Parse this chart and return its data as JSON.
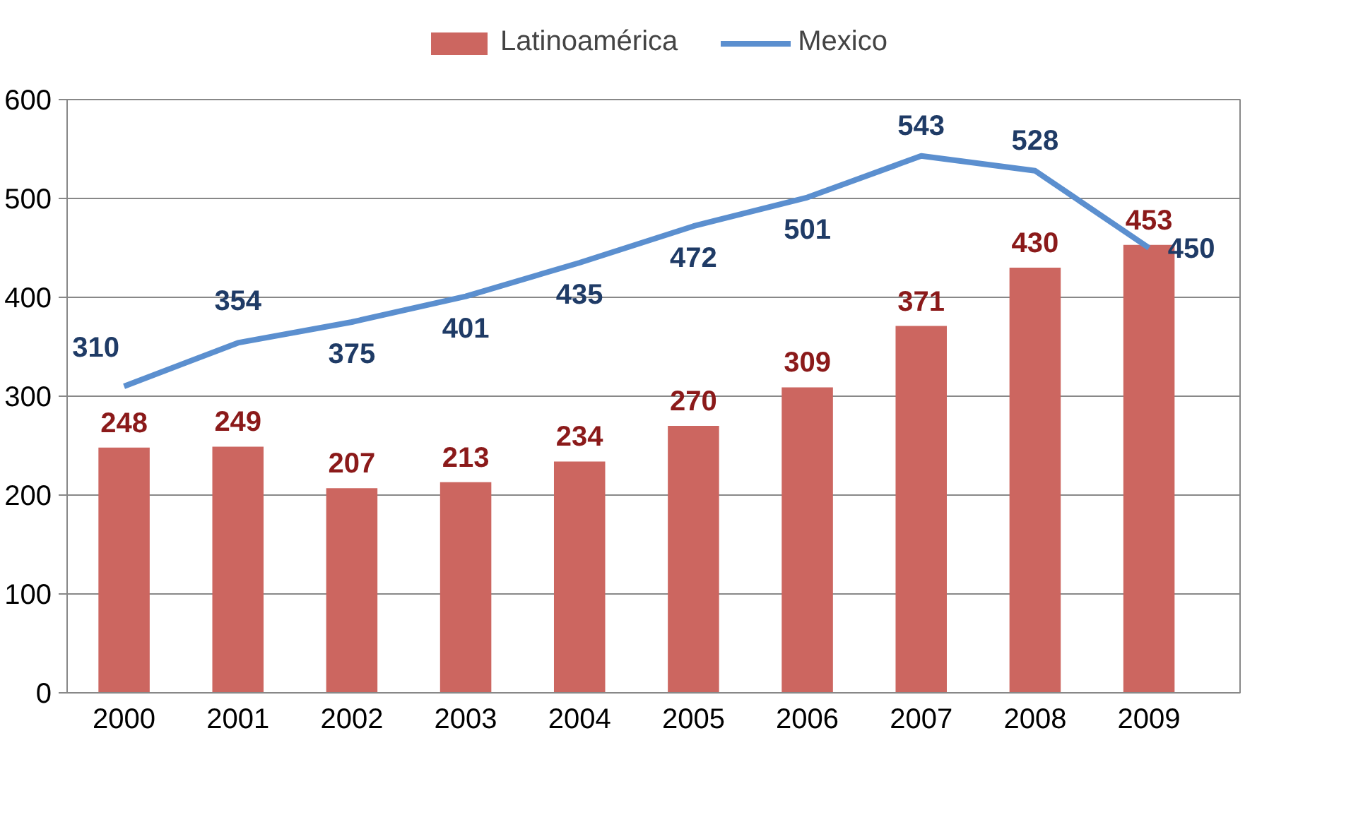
{
  "chart_data": {
    "type": "bar",
    "categories": [
      "2000",
      "2001",
      "2002",
      "2003",
      "2004",
      "2005",
      "2006",
      "2007",
      "2008",
      "2009"
    ],
    "series": [
      {
        "name": "Latinoamérica",
        "color": "#cc6660",
        "values": [
          248,
          249,
          207,
          213,
          234,
          270,
          309,
          371,
          430,
          453
        ]
      },
      {
        "name": "Mexico",
        "type": "line",
        "color": "#5b8fcf",
        "values": [
          310,
          354,
          375,
          401,
          435,
          472,
          501,
          543,
          528,
          450
        ]
      }
    ],
    "ylim": [
      0,
      600
    ],
    "yticks": [
      0,
      100,
      200,
      300,
      400,
      500,
      600
    ],
    "grid": "y",
    "legend": "top",
    "data_labels": true,
    "marker": "none",
    "line_style": "solid"
  }
}
